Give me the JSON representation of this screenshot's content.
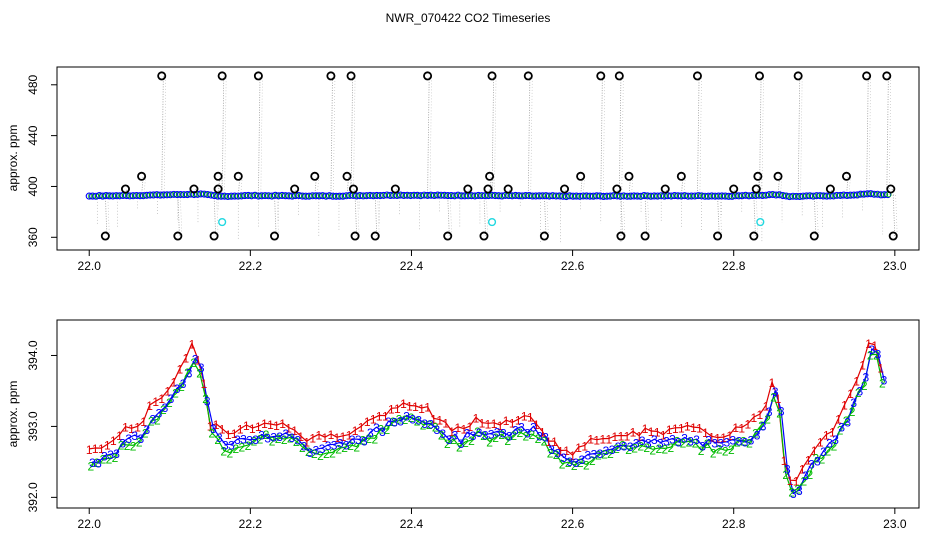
{
  "title": "NWR_070422  CO2 Timeseries",
  "chart_data": [
    {
      "type": "scatter",
      "ylabel": "approx. ppm",
      "xlim": [
        21.96,
        23.03
      ],
      "ylim": [
        350,
        494
      ],
      "xticks": [
        "22.0",
        "22.2",
        "22.4",
        "22.6",
        "22.8",
        "23.0"
      ],
      "yticks": [
        "360",
        "400",
        "440",
        "480"
      ],
      "baseline": [
        [
          22.0,
          392.5
        ],
        [
          22.05,
          392.8
        ],
        [
          22.1,
          393.5
        ],
        [
          22.14,
          394.0
        ],
        [
          22.16,
          392.2
        ],
        [
          22.2,
          392.8
        ],
        [
          22.3,
          392.5
        ],
        [
          22.38,
          393.2
        ],
        [
          22.42,
          393.0
        ],
        [
          22.5,
          392.8
        ],
        [
          22.6,
          392.3
        ],
        [
          22.7,
          392.6
        ],
        [
          22.8,
          392.5
        ],
        [
          22.855,
          393.6
        ],
        [
          22.87,
          392.1
        ],
        [
          22.94,
          393.0
        ],
        [
          22.97,
          394.2
        ],
        [
          22.99,
          393.3
        ]
      ],
      "outliers_black": [
        [
          22.02,
          361
        ],
        [
          22.045,
          398
        ],
        [
          22.065,
          408
        ],
        [
          22.09,
          487
        ],
        [
          22.11,
          361
        ],
        [
          22.13,
          398
        ],
        [
          22.155,
          361
        ],
        [
          22.16,
          398
        ],
        [
          22.16,
          408
        ],
        [
          22.165,
          487
        ],
        [
          22.185,
          408
        ],
        [
          22.21,
          487
        ],
        [
          22.23,
          361
        ],
        [
          22.255,
          398
        ],
        [
          22.28,
          408
        ],
        [
          22.3,
          487
        ],
        [
          22.32,
          408
        ],
        [
          22.325,
          487
        ],
        [
          22.328,
          398
        ],
        [
          22.33,
          361
        ],
        [
          22.355,
          361
        ],
        [
          22.38,
          398
        ],
        [
          22.42,
          487
        ],
        [
          22.445,
          361
        ],
        [
          22.47,
          398
        ],
        [
          22.49,
          361
        ],
        [
          22.495,
          398
        ],
        [
          22.497,
          408
        ],
        [
          22.5,
          487
        ],
        [
          22.52,
          398
        ],
        [
          22.545,
          487
        ],
        [
          22.565,
          361
        ],
        [
          22.59,
          398
        ],
        [
          22.61,
          408
        ],
        [
          22.635,
          487
        ],
        [
          22.655,
          398
        ],
        [
          22.658,
          487
        ],
        [
          22.66,
          361
        ],
        [
          22.67,
          408
        ],
        [
          22.69,
          361
        ],
        [
          22.715,
          398
        ],
        [
          22.735,
          408
        ],
        [
          22.755,
          487
        ],
        [
          22.78,
          361
        ],
        [
          22.8,
          398
        ],
        [
          22.825,
          361
        ],
        [
          22.828,
          398
        ],
        [
          22.83,
          408
        ],
        [
          22.832,
          487
        ],
        [
          22.855,
          408
        ],
        [
          22.88,
          487
        ],
        [
          22.9,
          361
        ],
        [
          22.92,
          398
        ],
        [
          22.94,
          408
        ],
        [
          22.965,
          487
        ],
        [
          22.99,
          487
        ],
        [
          22.995,
          398
        ],
        [
          22.998,
          361
        ]
      ],
      "outliers_cyan": [
        [
          22.165,
          372
        ],
        [
          22.5,
          372
        ],
        [
          22.833,
          372
        ]
      ],
      "colors": {
        "black": "#000000",
        "cyan": "#22d8e0",
        "blue": "#0000ff",
        "green": "#00bb00",
        "red": "#e00000"
      }
    },
    {
      "type": "line",
      "ylabel": "approx. ppm",
      "xlim": [
        21.96,
        23.03
      ],
      "ylim": [
        391.85,
        394.5
      ],
      "xticks": [
        "22.0",
        "22.2",
        "22.4",
        "22.6",
        "22.8",
        "23.0"
      ],
      "yticks": [
        "392.0",
        "393.0",
        "394.0"
      ],
      "series_markers": [
        "1",
        "2",
        "3"
      ],
      "x": [
        22.0,
        22.02,
        22.04,
        22.06,
        22.08,
        22.1,
        22.12,
        22.13,
        22.14,
        22.15,
        22.17,
        22.2,
        22.24,
        22.27,
        22.3,
        22.33,
        22.36,
        22.38,
        22.4,
        22.42,
        22.44,
        22.46,
        22.48,
        22.5,
        22.52,
        22.55,
        22.58,
        22.6,
        22.63,
        22.66,
        22.7,
        22.74,
        22.78,
        22.82,
        22.84,
        22.85,
        22.855,
        22.86,
        22.865,
        22.875,
        22.9,
        22.92,
        22.94,
        22.96,
        22.97,
        22.98,
        22.99
      ],
      "y": [
        392.55,
        392.6,
        392.8,
        392.9,
        393.2,
        393.45,
        393.85,
        394.1,
        393.6,
        392.95,
        392.75,
        392.9,
        392.95,
        392.7,
        392.75,
        392.85,
        393.0,
        393.15,
        393.2,
        393.1,
        392.9,
        392.85,
        393.0,
        392.9,
        392.95,
        393.0,
        392.6,
        392.5,
        392.7,
        392.8,
        392.8,
        392.85,
        392.75,
        392.9,
        393.2,
        393.6,
        393.3,
        392.7,
        392.2,
        392.1,
        392.6,
        392.8,
        393.2,
        393.7,
        394.25,
        393.85,
        393.4
      ]
    }
  ]
}
